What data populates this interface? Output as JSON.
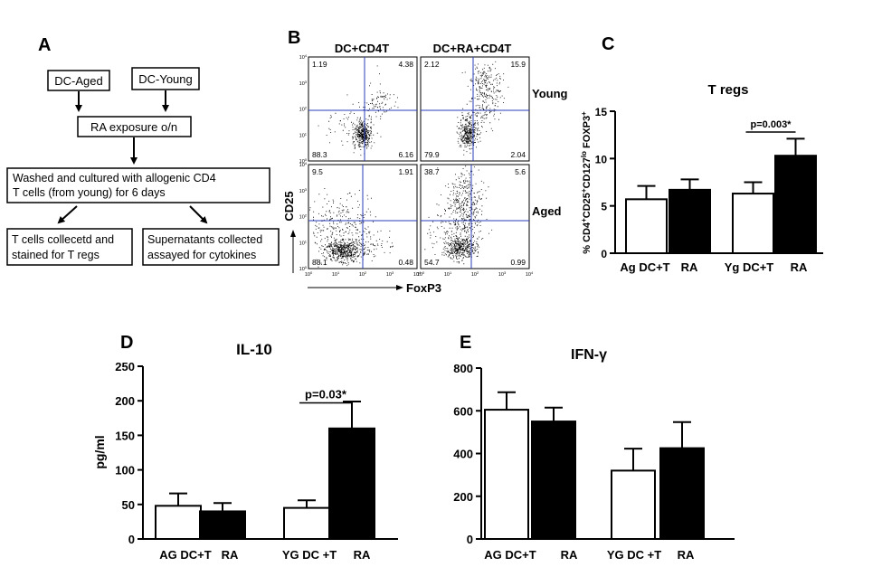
{
  "panel_a": {
    "letter": "A",
    "boxes": {
      "dc_aged": "DC-Aged",
      "dc_young": "DC-Young",
      "ra_exposure": "RA exposure o/n",
      "washed_line1": "Washed and cultured with allogenic CD4",
      "washed_line2": "T cells (from young) for 6 days",
      "tcells_line1": "T cells collecetd and",
      "tcells_line2": "stained for T regs",
      "supernatants_line1": "Supernatants collected",
      "supernatants_line2": "assayed for cytokines"
    }
  },
  "panel_b": {
    "letter": "B",
    "col_titles": [
      "DC+CD4T",
      "DC+RA+CD4T"
    ],
    "row_titles": [
      "Young",
      "Aged"
    ],
    "ylabel": "CD25",
    "xlabel": "FoxP3",
    "tick_base": "10",
    "tick_exps": [
      "0",
      "1",
      "2",
      "3",
      "4"
    ],
    "quadrants": [
      {
        "ul": "1.19",
        "ur": "4.38",
        "ll": "88.3",
        "lr": "6.16"
      },
      {
        "ul": "2.12",
        "ur": "15.9",
        "ll": "79.9",
        "lr": "2.04"
      },
      {
        "ul": "9.5",
        "ur": "1.91",
        "ll": "88.1",
        "lr": "0.48"
      },
      {
        "ul": "38.7",
        "ur": "5.6",
        "ll": "54.7",
        "lr": "0.99"
      }
    ]
  },
  "chart_data": [
    {
      "panel": "C",
      "type": "bar",
      "title": "T regs",
      "ylabel_parts": [
        "% CD4",
        "+",
        "CD25",
        "+",
        "CD127",
        "lo",
        " FOXP3",
        "+"
      ],
      "ylim": [
        0,
        15
      ],
      "yticks": [
        "0",
        "5",
        "10",
        "15"
      ],
      "ytick_values": [
        0,
        5,
        10,
        15
      ],
      "categories": [
        "Ag DC+T",
        "RA",
        "Yg DC+T",
        "RA"
      ],
      "values": [
        5.7,
        6.7,
        6.3,
        10.3
      ],
      "errors": [
        1.4,
        1.1,
        1.2,
        1.8
      ],
      "fills": [
        "#ffffff",
        "#000000",
        "#ffffff",
        "#000000"
      ],
      "annotation": "p=0.003*"
    },
    {
      "panel": "D",
      "type": "bar",
      "title": "IL-10",
      "ylabel": "pg/ml",
      "ylim": [
        0,
        250
      ],
      "yticks": [
        "0",
        "50",
        "100",
        "150",
        "200",
        "250"
      ],
      "ytick_values": [
        0,
        50,
        100,
        150,
        200,
        250
      ],
      "categories": [
        "AG DC+T",
        "RA",
        "YG DC +T",
        "RA"
      ],
      "values": [
        48,
        40,
        45,
        160
      ],
      "errors": [
        18,
        12,
        11,
        39
      ],
      "fills": [
        "#ffffff",
        "#000000",
        "#ffffff",
        "#000000"
      ],
      "annotation": "p=0.03*"
    },
    {
      "panel": "E",
      "type": "bar",
      "title": "IFN-γ",
      "ylabel": "",
      "ylim": [
        0,
        800
      ],
      "yticks": [
        "0",
        "200",
        "400",
        "600",
        "800"
      ],
      "ytick_values": [
        0,
        200,
        400,
        600,
        800
      ],
      "categories": [
        "AG DC+T",
        "RA",
        "YG DC +T",
        "RA"
      ],
      "values": [
        605,
        550,
        320,
        425
      ],
      "errors": [
        82,
        65,
        103,
        122
      ],
      "fills": [
        "#ffffff",
        "#000000",
        "#ffffff",
        "#000000"
      ]
    }
  ]
}
